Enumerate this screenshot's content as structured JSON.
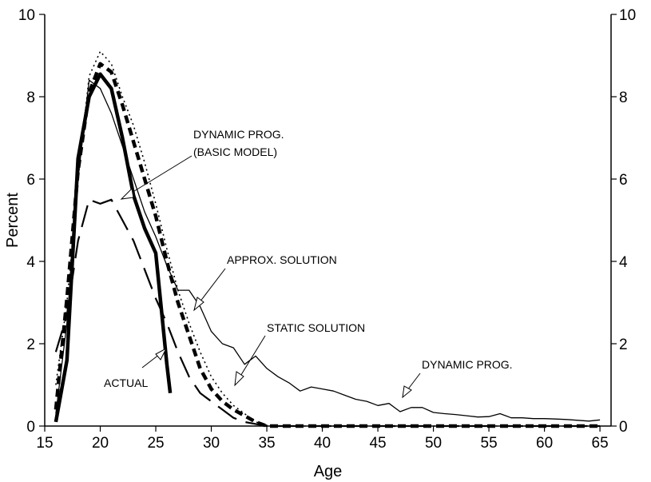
{
  "chart_data": {
    "type": "line",
    "xlabel": "Age",
    "ylabel": "Percent",
    "xlim": [
      15,
      66
    ],
    "ylim": [
      0,
      10
    ],
    "x_ticks": [
      15,
      20,
      25,
      30,
      35,
      40,
      45,
      50,
      55,
      60,
      65
    ],
    "y_ticks": [
      0,
      2,
      4,
      6,
      8,
      10
    ],
    "right_axis_ticks": [
      0,
      2,
      4,
      6,
      8,
      10
    ],
    "grid": false,
    "legend": "none",
    "series": [
      {
        "id": "dynamic-prog",
        "style": "solid-thin",
        "x": [
          16,
          17,
          18,
          19,
          20,
          21,
          22,
          23,
          24,
          25,
          26,
          27,
          28,
          29,
          30,
          31,
          32,
          33,
          34,
          35,
          36,
          37,
          38,
          39,
          40,
          41,
          42,
          43,
          44,
          45,
          46,
          47,
          48,
          49,
          50,
          51,
          52,
          53,
          54,
          55,
          56,
          57,
          58,
          59,
          60,
          61,
          62,
          63,
          64,
          65
        ],
        "y": [
          0.3,
          2.5,
          6.0,
          8.4,
          8.2,
          7.6,
          6.8,
          6.0,
          5.2,
          4.6,
          3.9,
          3.3,
          3.3,
          2.9,
          2.3,
          2.0,
          1.9,
          1.5,
          1.7,
          1.4,
          1.2,
          1.05,
          0.85,
          0.95,
          0.9,
          0.85,
          0.75,
          0.65,
          0.6,
          0.5,
          0.55,
          0.35,
          0.45,
          0.45,
          0.33,
          0.3,
          0.28,
          0.25,
          0.22,
          0.23,
          0.3,
          0.2,
          0.2,
          0.18,
          0.18,
          0.17,
          0.16,
          0.14,
          0.12,
          0.15
        ]
      },
      {
        "id": "dynamic-prog-basic-model",
        "style": "dashed-long",
        "x": [
          16,
          17,
          18,
          19,
          20,
          21,
          22,
          23,
          24,
          25,
          26,
          27,
          28,
          29,
          30,
          31,
          32,
          33,
          34,
          35,
          36,
          37,
          38,
          39,
          40,
          41,
          42,
          43,
          44,
          45,
          46,
          47,
          48,
          49,
          50,
          51,
          52,
          53,
          54,
          55,
          56,
          57,
          58,
          59,
          60,
          61,
          62,
          63,
          64,
          65
        ],
        "y": [
          1.8,
          2.7,
          4.5,
          5.5,
          5.4,
          5.5,
          5.0,
          4.5,
          3.8,
          3.1,
          2.5,
          1.8,
          1.2,
          0.8,
          0.6,
          0.4,
          0.2,
          0.1,
          0.05,
          0,
          0,
          0,
          0,
          0,
          0,
          0,
          0,
          0,
          0,
          0,
          0,
          0,
          0,
          0,
          0,
          0,
          0,
          0,
          0,
          0,
          0,
          0,
          0,
          0,
          0,
          0,
          0,
          0,
          0,
          0
        ]
      },
      {
        "id": "actual",
        "style": "solid-thick",
        "x": [
          16,
          17,
          18,
          19,
          20,
          21,
          22,
          23,
          24,
          25,
          26,
          26.3
        ],
        "y": [
          0.1,
          1.6,
          6.5,
          8.0,
          8.55,
          8.2,
          7.0,
          5.6,
          4.8,
          4.2,
          1.5,
          0.8
        ]
      },
      {
        "id": "approx-solution",
        "style": "dashed-thick",
        "x": [
          16,
          17,
          18,
          19,
          20,
          21,
          22,
          23,
          24,
          25,
          26,
          27,
          28,
          29,
          30,
          31,
          32,
          33,
          34,
          35,
          36,
          37,
          38,
          39,
          40,
          41,
          42,
          43,
          44,
          45,
          46,
          47,
          48,
          49,
          50,
          51,
          52,
          53,
          54,
          55,
          56,
          57,
          58,
          59,
          60,
          61,
          62,
          63,
          64,
          65
        ],
        "y": [
          0.4,
          3.1,
          6.2,
          8.1,
          8.8,
          8.6,
          7.8,
          6.9,
          6.0,
          5.1,
          4.0,
          3.0,
          2.2,
          1.4,
          0.9,
          0.6,
          0.4,
          0.25,
          0.1,
          0,
          0,
          0,
          0,
          0,
          0,
          0,
          0,
          0,
          0,
          0,
          0,
          0,
          0,
          0,
          0,
          0,
          0,
          0,
          0,
          0,
          0,
          0,
          0,
          0,
          0,
          0,
          0,
          0,
          0,
          0
        ]
      },
      {
        "id": "static-solution",
        "style": "dotted",
        "x": [
          16,
          17,
          18,
          19,
          20,
          21,
          22,
          23,
          24,
          25,
          26,
          27,
          28,
          29,
          30,
          31,
          32,
          33,
          34,
          35,
          36,
          37,
          38,
          39,
          40,
          41,
          42,
          43,
          44,
          45,
          46,
          47,
          48,
          49,
          50,
          51,
          52,
          53,
          54,
          55,
          56,
          57,
          58,
          59,
          60,
          61,
          62,
          63,
          64,
          65
        ],
        "y": [
          1.0,
          3.0,
          6.0,
          8.5,
          9.1,
          8.8,
          8.0,
          7.3,
          6.4,
          5.4,
          4.3,
          3.3,
          2.5,
          1.8,
          1.2,
          0.8,
          0.5,
          0.3,
          0.1,
          0.02,
          0,
          0,
          0,
          0,
          0,
          0,
          0,
          0,
          0,
          0,
          0,
          0,
          0,
          0,
          0,
          0,
          0,
          0,
          0,
          0,
          0,
          0,
          0,
          0,
          0,
          0,
          0,
          0,
          0,
          0
        ]
      }
    ],
    "annotations": [
      {
        "id": "annotation-dynamic-prog-basic-line1",
        "text": "DYNAMIC PROG.",
        "points_to": "dynamic-prog-basic-model"
      },
      {
        "id": "annotation-dynamic-prog-basic-line2",
        "text": "(BASIC MODEL)",
        "points_to": "dynamic-prog-basic-model"
      },
      {
        "id": "annotation-approx",
        "text": "APPROX. SOLUTION",
        "points_to": "approx-solution"
      },
      {
        "id": "annotation-static",
        "text": "STATIC SOLUTION",
        "points_to": "static-solution"
      },
      {
        "id": "annotation-dynamic-prog",
        "text": "DYNAMIC PROG.",
        "points_to": "dynamic-prog"
      },
      {
        "id": "annotation-actual",
        "text": "ACTUAL",
        "points_to": "actual"
      }
    ]
  }
}
